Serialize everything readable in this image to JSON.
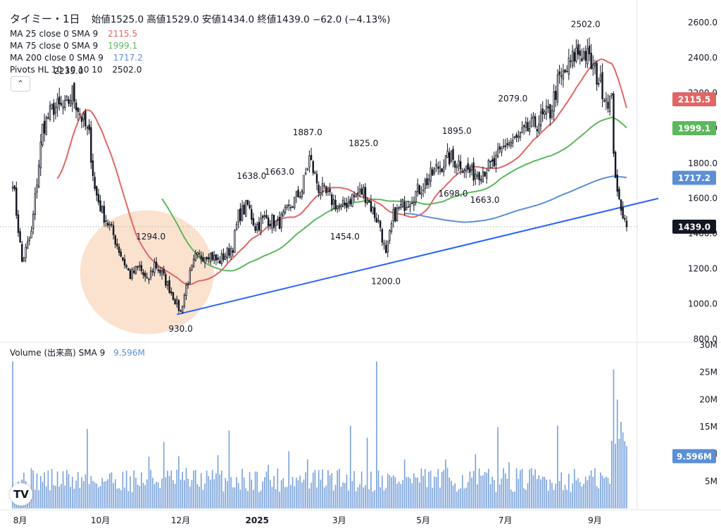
{
  "header": {
    "symbol": "タイミー・1日",
    "ohlc_text": "始値1525.0  高値1529.0  安値1434.0  終値1439.0  −62.0 (−4.13%)",
    "indicators": [
      {
        "label": "MA 25 close 0 SMA 9",
        "value": "2115.5",
        "color": "#e06666"
      },
      {
        "label": "MA 75 close 0 SMA 9",
        "value": "1999.1",
        "color": "#5cb85c"
      },
      {
        "label": "MA 200 close 0 SMA 9",
        "value": "1717.2",
        "color": "#5b8fd6"
      },
      {
        "label": "Pivots HL 10 10 10 10",
        "value": "2502.0",
        "color": "#131722"
      }
    ],
    "collapse_symbol": "⌃"
  },
  "volume_header": {
    "label": "Volume (出来高) SMA 9",
    "value": "9.596M",
    "color": "#5b8fd6"
  },
  "logo_text": "TV",
  "chart_data": {
    "type": "candlestick",
    "price_axis": {
      "ticks": [
        800,
        1000,
        1200,
        1400,
        1600,
        1800,
        2000,
        2200,
        2400,
        2600
      ],
      "tick_labels": [
        "800.0",
        "1000.0",
        "1200.0",
        "1400.0",
        "1600.0",
        "1800.0",
        "2000.0",
        "2200.0",
        "2400.0",
        "2600.0"
      ],
      "range": [
        790,
        2640
      ]
    },
    "volume_axis": {
      "ticks": [
        5,
        10,
        15,
        20,
        25,
        30
      ],
      "tick_labels": [
        "5M",
        "10M",
        "15M",
        "20M",
        "25M",
        "30M"
      ],
      "range": [
        0,
        30
      ]
    },
    "x_axis": {
      "ticks": [
        {
          "label": "8月",
          "index": 4
        },
        {
          "label": "10月",
          "index": 47
        },
        {
          "label": "12月",
          "index": 90
        },
        {
          "label": "2025",
          "index": 131
        },
        {
          "label": "3月",
          "index": 175
        },
        {
          "label": "5月",
          "index": 220
        },
        {
          "label": "7月",
          "index": 264
        },
        {
          "label": "9月",
          "index": 312
        }
      ],
      "count": 330
    },
    "last_price": {
      "value": 1439.0,
      "label": "1439.0",
      "color": "#131722"
    },
    "ma_badges": [
      {
        "value": 2115.5,
        "label": "2115.5",
        "color": "#e06666"
      },
      {
        "value": 1999.1,
        "label": "1999.1",
        "color": "#5cb85c"
      },
      {
        "value": 1717.2,
        "label": "1717.2",
        "color": "#5b8fd6"
      }
    ],
    "volume_badge": {
      "value": 9.596,
      "label": "9.596M",
      "color": "#5b8fd6"
    },
    "pivots": [
      {
        "label": "2235.0",
        "index": 30,
        "price": 2235
      },
      {
        "label": "1294.0",
        "index": 74,
        "price": 1294
      },
      {
        "label": "930.0",
        "index": 90,
        "price": 930
      },
      {
        "label": "1638.0",
        "index": 128,
        "price": 1638
      },
      {
        "label": "1663.0",
        "index": 143,
        "price": 1663
      },
      {
        "label": "1887.0",
        "index": 158,
        "price": 1887
      },
      {
        "label": "1825.0",
        "index": 188,
        "price": 1825
      },
      {
        "label": "1454.0",
        "index": 178,
        "price": 1454
      },
      {
        "label": "1200.0",
        "index": 200,
        "price": 1200
      },
      {
        "label": "1895.0",
        "index": 238,
        "price": 1895
      },
      {
        "label": "1698.0",
        "index": 236,
        "price": 1698
      },
      {
        "label": "1663.0",
        "index": 253,
        "price": 1663
      },
      {
        "label": "2079.0",
        "index": 268,
        "price": 2079
      },
      {
        "label": "2502.0",
        "index": 307,
        "price": 2502
      }
    ],
    "anchors": [
      [
        0,
        1710
      ],
      [
        5,
        1240
      ],
      [
        10,
        1400
      ],
      [
        16,
        2000
      ],
      [
        22,
        2120
      ],
      [
        28,
        2110
      ],
      [
        32,
        2200
      ],
      [
        37,
        2060
      ],
      [
        41,
        1950
      ],
      [
        44,
        1650
      ],
      [
        48,
        1520
      ],
      [
        53,
        1420
      ],
      [
        58,
        1280
      ],
      [
        63,
        1160
      ],
      [
        68,
        1210
      ],
      [
        72,
        1120
      ],
      [
        76,
        1230
      ],
      [
        80,
        1170
      ],
      [
        84,
        1090
      ],
      [
        88,
        1000
      ],
      [
        90,
        955
      ],
      [
        93,
        1100
      ],
      [
        98,
        1260
      ],
      [
        105,
        1290
      ],
      [
        110,
        1240
      ],
      [
        115,
        1290
      ],
      [
        118,
        1330
      ],
      [
        121,
        1500
      ],
      [
        126,
        1560
      ],
      [
        130,
        1440
      ],
      [
        136,
        1490
      ],
      [
        142,
        1450
      ],
      [
        148,
        1540
      ],
      [
        155,
        1650
      ],
      [
        159,
        1830
      ],
      [
        164,
        1660
      ],
      [
        170,
        1600
      ],
      [
        176,
        1540
      ],
      [
        182,
        1610
      ],
      [
        188,
        1640
      ],
      [
        193,
        1530
      ],
      [
        197,
        1440
      ],
      [
        200,
        1270
      ],
      [
        204,
        1500
      ],
      [
        210,
        1570
      ],
      [
        216,
        1630
      ],
      [
        222,
        1700
      ],
      [
        228,
        1780
      ],
      [
        234,
        1830
      ],
      [
        240,
        1800
      ],
      [
        246,
        1740
      ],
      [
        252,
        1760
      ],
      [
        258,
        1790
      ],
      [
        264,
        1910
      ],
      [
        270,
        1930
      ],
      [
        276,
        1990
      ],
      [
        282,
        2040
      ],
      [
        288,
        2090
      ],
      [
        292,
        2250
      ],
      [
        297,
        2330
      ],
      [
        302,
        2430
      ],
      [
        307,
        2420
      ],
      [
        312,
        2320
      ],
      [
        318,
        2180
      ],
      [
        321,
        2150
      ],
      [
        322,
        1890
      ],
      [
        324,
        1600
      ],
      [
        326,
        1560
      ],
      [
        328,
        1480
      ],
      [
        329,
        1439
      ]
    ],
    "volume_spikes": {
      "0": 27,
      "40": 14.6,
      "73": 9.5,
      "81": 12.2,
      "89": 9.6,
      "110": 9.8,
      "116": 14.3,
      "137": 8,
      "148": 10.5,
      "158": 9,
      "181": 15.2,
      "190": 13,
      "195": 27,
      "210": 9,
      "232": 9,
      "248": 10,
      "260": 14.9,
      "266": 8.5,
      "292": 15.2,
      "322": 25.5,
      "324": 20,
      "325": 12.8,
      "326": 15.9,
      "327": 14
    }
  }
}
